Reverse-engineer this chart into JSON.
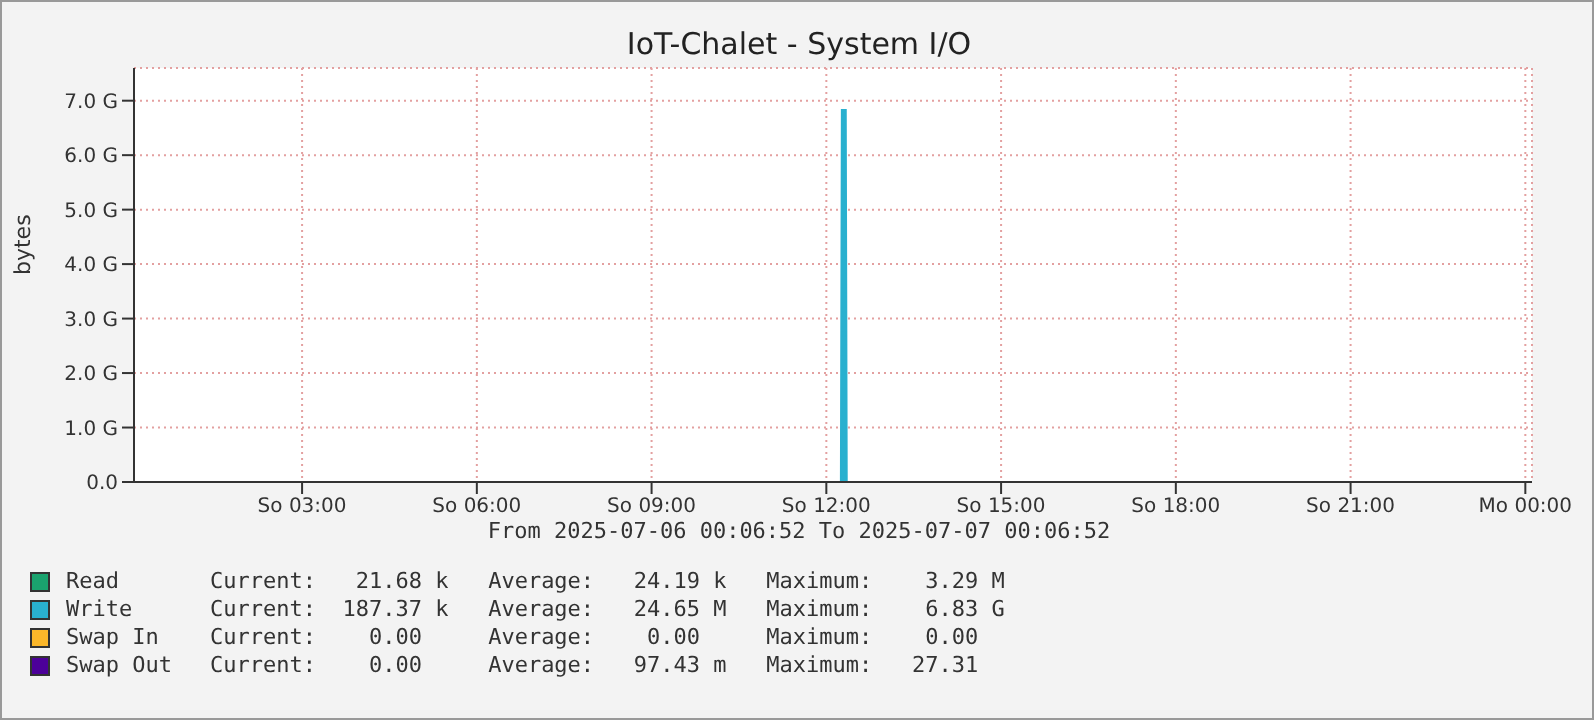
{
  "chart_data": {
    "type": "area",
    "title": "IoT-Chalet - System I/O",
    "ylabel": "bytes",
    "xlabel": "From 2025-07-06 00:06:52 To 2025-07-07 00:06:52",
    "x": [
      "2025-07-06T00:06:52",
      "2025-07-06T12:15",
      "2025-07-06T12:16",
      "2025-07-06T12:20",
      "2025-07-06T12:21",
      "2025-07-07T00:06:52"
    ],
    "series": [
      {
        "name": "Read",
        "color": "#1aa36e",
        "values": [
          null,
          null,
          null,
          null,
          null,
          null
        ]
      },
      {
        "name": "Write",
        "color": "#29b0cf",
        "values": [
          0,
          0,
          6.83,
          6.83,
          0,
          0
        ]
      },
      {
        "name": "Swap In",
        "color": "#fbb72a",
        "values": [
          null,
          null,
          null,
          null,
          null,
          null
        ]
      },
      {
        "name": "Swap Out",
        "color": "#4c0099",
        "values": [
          null,
          null,
          null,
          null,
          null,
          null
        ]
      }
    ],
    "xlim": [
      "2025-07-06T00:06:52",
      "2025-07-07T00:06:52"
    ],
    "xticks": [
      {
        "value": "2025-07-06T03:00",
        "label": "So 03:00"
      },
      {
        "value": "2025-07-06T06:00",
        "label": "So 06:00"
      },
      {
        "value": "2025-07-06T09:00",
        "label": "So 09:00"
      },
      {
        "value": "2025-07-06T12:00",
        "label": "So 12:00"
      },
      {
        "value": "2025-07-06T15:00",
        "label": "So 15:00"
      },
      {
        "value": "2025-07-06T18:00",
        "label": "So 18:00"
      },
      {
        "value": "2025-07-06T21:00",
        "label": "So 21:00"
      },
      {
        "value": "2025-07-07T00:00",
        "label": "Mo 00:00"
      }
    ],
    "ylim": [
      0,
      7.6
    ],
    "yticks": [
      {
        "value": 0,
        "label": "0.0"
      },
      {
        "value": 1,
        "label": "1.0 G"
      },
      {
        "value": 2,
        "label": "2.0 G"
      },
      {
        "value": 3,
        "label": "3.0 G"
      },
      {
        "value": 4,
        "label": "4.0 G"
      },
      {
        "value": 5,
        "label": "5.0 G"
      },
      {
        "value": 6,
        "label": "6.0 G"
      },
      {
        "value": 7,
        "label": "7.0 G"
      }
    ],
    "grid": true,
    "legend": "bottom",
    "annotations": [
      "Current:   21.68 k   Average:   24.19 k   Maximum:    3.29 M",
      "Current:  187.37 k   Average:   24.65 M   Maximum:    6.83 G",
      "Current:    0.00     Average:    0.00     Maximum:    0.00",
      "Current:    0.00     Average:   97.43 m   Maximum:   27.31"
    ]
  }
}
